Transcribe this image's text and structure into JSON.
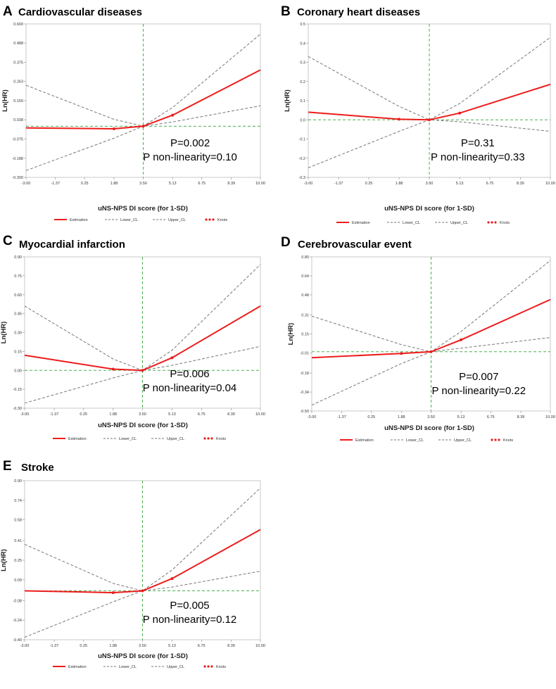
{
  "colors": {
    "estimation": "#ee1c1c",
    "ci": "#777777",
    "reference": "#4caf50",
    "frame": "#bbbbbb"
  },
  "legend": {
    "estimation": "Estimation",
    "lower": "Lower_CL",
    "upper": "Upper_CL",
    "knots": "Knots"
  },
  "chart_data": [
    {
      "type": "line",
      "letter": "A",
      "title": "Cardiovascular diseases",
      "xlabel": "uNS-NPS DI score (for 1-SD)",
      "ylabel": "Ln(HR)",
      "xlim": [
        -3.0,
        10.0
      ],
      "ylim": [
        -0.3,
        0.6
      ],
      "xticks": [
        -3.0,
        -1.37,
        0.25,
        1.88,
        3.5,
        5.13,
        6.75,
        8.39,
        10.0
      ],
      "xtick_labels": [
        "-3.00",
        "-1.37",
        "0.25",
        "1.88",
        "3.50",
        "5.13",
        "6.75",
        "8.39",
        "10.00"
      ],
      "yticks": [
        -0.3,
        -0.188,
        -0.075,
        0.038,
        0.15,
        0.263,
        0.375,
        0.488,
        0.6
      ],
      "ytick_labels": [
        "-0.300",
        "-0.188",
        "-0.075",
        "0.038",
        "0.150",
        "0.263",
        "0.375",
        "0.488",
        "0.600"
      ],
      "ref_x": 3.5,
      "ref_y": 0.0,
      "series": [
        {
          "name": "Estimation",
          "x": [
            -3.0,
            1.88,
            3.5,
            5.13,
            10.0
          ],
          "y": [
            -0.01,
            -0.015,
            0.0,
            0.065,
            0.33
          ]
        },
        {
          "name": "Lower_CL",
          "x": [
            -3.0,
            1.88,
            3.5,
            5.13,
            10.0
          ],
          "y": [
            -0.26,
            -0.07,
            0.0,
            0.025,
            0.12
          ]
        },
        {
          "name": "Upper_CL",
          "x": [
            -3.0,
            1.88,
            3.5,
            5.13,
            10.0
          ],
          "y": [
            0.24,
            0.04,
            0.0,
            0.11,
            0.54
          ]
        }
      ],
      "knots": {
        "x": [
          1.88,
          3.5,
          5.13
        ],
        "y": [
          -0.015,
          0.0,
          0.065
        ]
      },
      "annotations": [
        "P=0.002",
        "P non-linearity=0.10"
      ]
    },
    {
      "type": "line",
      "letter": "B",
      "title": "Coronary heart diseases",
      "xlabel": "uNS-NPS DI score (for 1-SD)",
      "ylabel": "Ln(HR)",
      "xlim": [
        -3.0,
        10.0
      ],
      "ylim": [
        -0.3,
        0.5
      ],
      "xticks": [
        -3.0,
        -1.37,
        0.25,
        1.88,
        3.5,
        5.13,
        6.75,
        8.39,
        10.0
      ],
      "xtick_labels": [
        "-3.00",
        "-1.37",
        "0.25",
        "1.88",
        "3.50",
        "5.13",
        "6.75",
        "8.39",
        "10.00"
      ],
      "yticks": [
        -0.3,
        -0.2,
        -0.1,
        0.0,
        0.1,
        0.2,
        0.3,
        0.4,
        0.5
      ],
      "ytick_labels": [
        "-0.3",
        "-0.2",
        "-0.1",
        "0.0",
        "0.1",
        "0.2",
        "0.3",
        "0.4",
        "0.5"
      ],
      "ref_x": 3.5,
      "ref_y": 0.0,
      "series": [
        {
          "name": "Estimation",
          "x": [
            -3.0,
            1.88,
            3.5,
            5.13,
            10.0
          ],
          "y": [
            0.04,
            0.003,
            0.0,
            0.035,
            0.185
          ]
        },
        {
          "name": "Lower_CL",
          "x": [
            -3.0,
            1.88,
            3.5,
            5.13,
            10.0
          ],
          "y": [
            -0.25,
            -0.06,
            0.0,
            -0.01,
            -0.06
          ]
        },
        {
          "name": "Upper_CL",
          "x": [
            -3.0,
            1.88,
            3.5,
            5.13,
            10.0
          ],
          "y": [
            0.33,
            0.07,
            0.0,
            0.085,
            0.43
          ]
        }
      ],
      "knots": {
        "x": [
          1.88,
          3.5,
          5.13
        ],
        "y": [
          0.003,
          0.0,
          0.035
        ]
      },
      "annotations": [
        "P=0.31",
        "P non-linearity=0.33"
      ]
    },
    {
      "type": "line",
      "letter": "C",
      "title": "Myocardial infarction",
      "xlabel": "uNS-NPS DI score (for 1-SD)",
      "ylabel": "Ln(HR)",
      "xlim": [
        -3.0,
        10.0
      ],
      "ylim": [
        -0.3,
        0.9
      ],
      "xticks": [
        -3.0,
        -1.37,
        0.25,
        1.88,
        3.5,
        5.13,
        6.75,
        8.39,
        10.0
      ],
      "xtick_labels": [
        "-3.00",
        "-1.37",
        "0.25",
        "1.88",
        "3.50",
        "5.13",
        "6.75",
        "8.39",
        "10.00"
      ],
      "yticks": [
        -0.3,
        -0.15,
        0.0,
        0.15,
        0.3,
        0.45,
        0.6,
        0.75,
        0.9
      ],
      "ytick_labels": [
        "-0.30",
        "-0.15",
        "0.00",
        "0.15",
        "0.30",
        "0.45",
        "0.60",
        "0.75",
        "0.90"
      ],
      "ref_x": 3.5,
      "ref_y": 0.0,
      "series": [
        {
          "name": "Estimation",
          "x": [
            -3.0,
            1.88,
            3.5,
            5.13,
            10.0
          ],
          "y": [
            0.12,
            0.01,
            0.0,
            0.1,
            0.51
          ]
        },
        {
          "name": "Lower_CL",
          "x": [
            -3.0,
            1.88,
            3.5,
            5.13,
            10.0
          ],
          "y": [
            -0.26,
            -0.06,
            0.0,
            0.04,
            0.19
          ]
        },
        {
          "name": "Upper_CL",
          "x": [
            -3.0,
            1.88,
            3.5,
            5.13,
            10.0
          ],
          "y": [
            0.51,
            0.09,
            0.0,
            0.16,
            0.84
          ]
        }
      ],
      "knots": {
        "x": [
          1.88,
          3.5,
          5.13
        ],
        "y": [
          0.01,
          0.0,
          0.1
        ]
      },
      "annotations": [
        "P=0.006",
        "P non-linearity=0.04"
      ]
    },
    {
      "type": "line",
      "letter": "D",
      "title": "Cerebrovascular event",
      "xlabel": "uNS-NPS DI score (for 1-SD)",
      "ylabel": "Ln(HR)",
      "xlim": [
        -3.0,
        10.0
      ],
      "ylim": [
        -0.5,
        0.8
      ],
      "xticks": [
        -3.0,
        -1.37,
        0.25,
        1.88,
        3.5,
        5.13,
        6.75,
        8.39,
        10.0
      ],
      "xtick_labels": [
        "-3.00",
        "-1.37",
        "0.25",
        "1.88",
        "3.50",
        "5.13",
        "6.75",
        "8.39",
        "10.00"
      ],
      "yticks": [
        -0.5,
        -0.34,
        -0.18,
        -0.01,
        0.15,
        0.31,
        0.48,
        0.64,
        0.8
      ],
      "ytick_labels": [
        "-0.50",
        "-0.34",
        "-0.18",
        "-0.01",
        "0.15",
        "0.31",
        "0.48",
        "0.64",
        "0.80"
      ],
      "ref_x": 3.5,
      "ref_y": 0.0,
      "series": [
        {
          "name": "Estimation",
          "x": [
            -3.0,
            1.88,
            3.5,
            5.13,
            10.0
          ],
          "y": [
            -0.05,
            -0.015,
            0.0,
            0.1,
            0.44
          ]
        },
        {
          "name": "Lower_CL",
          "x": [
            -3.0,
            1.88,
            3.5,
            5.13,
            10.0
          ],
          "y": [
            -0.45,
            -0.1,
            0.0,
            0.03,
            0.12
          ]
        },
        {
          "name": "Upper_CL",
          "x": [
            -3.0,
            1.88,
            3.5,
            5.13,
            10.0
          ],
          "y": [
            0.3,
            0.06,
            0.0,
            0.17,
            0.77
          ]
        }
      ],
      "knots": {
        "x": [
          1.88,
          3.5,
          5.13
        ],
        "y": [
          -0.015,
          0.0,
          0.1
        ]
      },
      "annotations": [
        "P=0.007",
        "P non-linearity=0.22"
      ]
    },
    {
      "type": "line",
      "letter": "E",
      "title": "Stroke",
      "xlabel": "uNS-NPS DI score (for 1-SD)",
      "ylabel": "Ln(HR)",
      "xlim": [
        -3.0,
        10.0
      ],
      "ylim": [
        -0.4,
        0.9
      ],
      "xticks": [
        -3.0,
        -1.37,
        0.25,
        1.88,
        3.5,
        5.13,
        6.75,
        8.39,
        10.0
      ],
      "xtick_labels": [
        "-3.00",
        "-1.37",
        "0.25",
        "1.88",
        "3.50",
        "5.13",
        "6.75",
        "8.39",
        "10.00"
      ],
      "yticks": [
        -0.4,
        -0.24,
        -0.08,
        0.09,
        0.25,
        0.41,
        0.58,
        0.74,
        0.9
      ],
      "ytick_labels": [
        "-0.40",
        "-0.24",
        "-0.08",
        "0.09",
        "0.25",
        "0.41",
        "0.58",
        "0.74",
        "0.90"
      ],
      "ref_x": 3.5,
      "ref_y": 0.0,
      "series": [
        {
          "name": "Estimation",
          "x": [
            -3.0,
            1.88,
            3.5,
            5.13,
            10.0
          ],
          "y": [
            0.0,
            -0.015,
            0.0,
            0.1,
            0.5
          ]
        },
        {
          "name": "Lower_CL",
          "x": [
            -3.0,
            1.88,
            3.5,
            5.13,
            10.0
          ],
          "y": [
            -0.38,
            -0.09,
            0.0,
            0.03,
            0.16
          ]
        },
        {
          "name": "Upper_CL",
          "x": [
            -3.0,
            1.88,
            3.5,
            5.13,
            10.0
          ],
          "y": [
            0.38,
            0.06,
            0.0,
            0.17,
            0.84
          ]
        }
      ],
      "knots": {
        "x": [
          1.88,
          3.5,
          5.13
        ],
        "y": [
          -0.015,
          0.0,
          0.1
        ]
      },
      "annotations": [
        "P=0.005",
        "P non-linearity=0.12"
      ]
    }
  ]
}
